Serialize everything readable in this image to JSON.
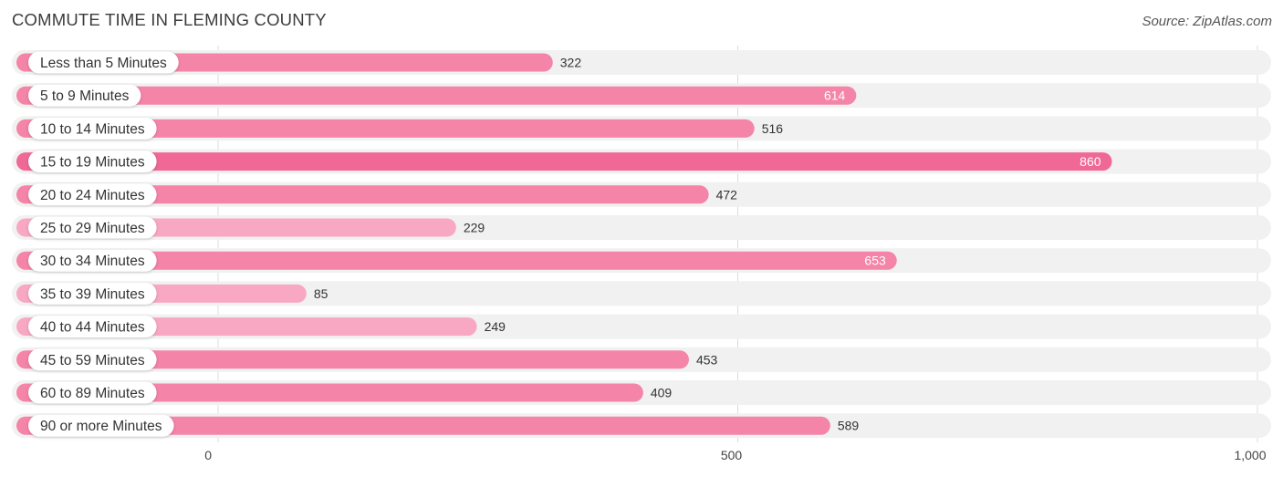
{
  "title": "COMMUTE TIME IN FLEMING COUNTY",
  "source": "Source: ZipAtlas.com",
  "colors": {
    "bar": "#f484a8",
    "bar_highlight": "#f06896",
    "bar_light": "#f8a8c2",
    "track": "#f1f1f1",
    "grid": "#dcdcdc",
    "value_inside": "#ffffff",
    "value_outside": "#333333"
  },
  "chart_data": {
    "type": "bar",
    "orientation": "horizontal",
    "title": "COMMUTE TIME IN FLEMING COUNTY",
    "xlabel": "",
    "ylabel": "",
    "xlim": [
      0,
      1000
    ],
    "ticks": [
      0,
      500,
      1000
    ],
    "tick_labels": [
      "0",
      "500",
      "1,000"
    ],
    "categories": [
      "Less than 5 Minutes",
      "5 to 9 Minutes",
      "10 to 14 Minutes",
      "15 to 19 Minutes",
      "20 to 24 Minutes",
      "25 to 29 Minutes",
      "30 to 34 Minutes",
      "35 to 39 Minutes",
      "40 to 44 Minutes",
      "45 to 59 Minutes",
      "60 to 89 Minutes",
      "90 or more Minutes"
    ],
    "values": [
      322,
      614,
      516,
      860,
      472,
      229,
      653,
      85,
      249,
      453,
      409,
      589
    ],
    "value_labels": [
      "322",
      "614",
      "516",
      "860",
      "472",
      "229",
      "653",
      "85",
      "249",
      "453",
      "409",
      "589"
    ],
    "grid": true
  }
}
